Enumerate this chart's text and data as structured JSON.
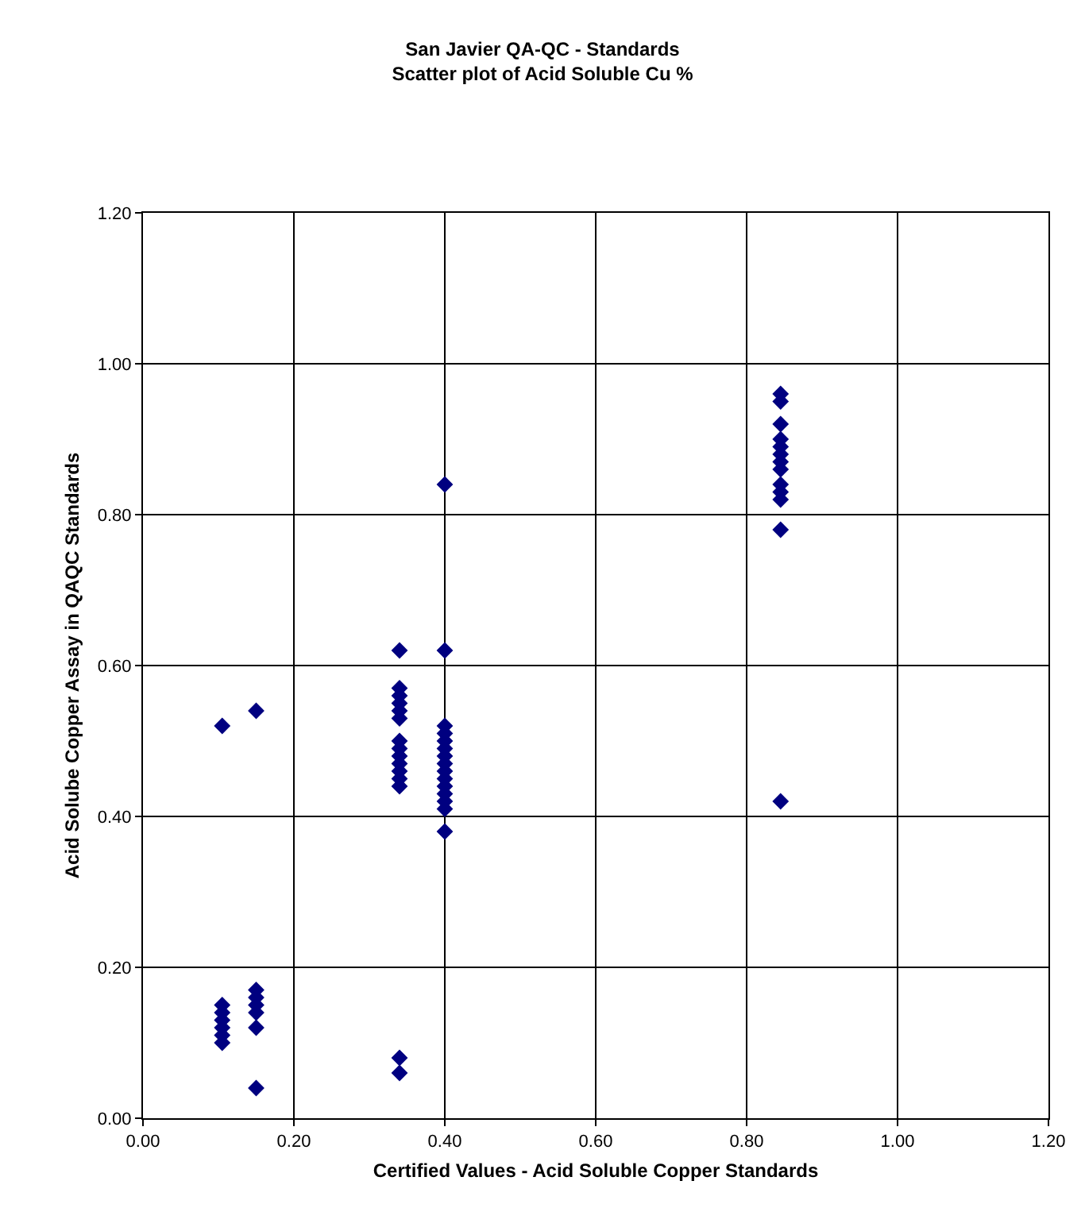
{
  "chart_data": {
    "type": "scatter",
    "title": "San Javier QA-QC - Standards",
    "subtitle": "Scatter plot of Acid Soluble Cu %",
    "xlabel": "Certified Values - Acid Soluble Copper Standards",
    "ylabel": "Acid Solube Copper Assay in QAQC Standards",
    "x": [
      0.105,
      0.105,
      0.105,
      0.105,
      0.105,
      0.105,
      0.105,
      0.15,
      0.15,
      0.15,
      0.15,
      0.15,
      0.15,
      0.15,
      0.34,
      0.34,
      0.34,
      0.34,
      0.34,
      0.34,
      0.34,
      0.34,
      0.34,
      0.34,
      0.34,
      0.34,
      0.34,
      0.34,
      0.34,
      0.4,
      0.4,
      0.4,
      0.4,
      0.4,
      0.4,
      0.4,
      0.4,
      0.4,
      0.4,
      0.4,
      0.4,
      0.4,
      0.4,
      0.4,
      0.845,
      0.845,
      0.845,
      0.845,
      0.845,
      0.845,
      0.845,
      0.845,
      0.845,
      0.845,
      0.845,
      0.845,
      0.845
    ],
    "series": [
      {
        "color": "#000080",
        "values": [
          0.1,
          0.11,
          0.12,
          0.13,
          0.14,
          0.15,
          0.52,
          0.04,
          0.12,
          0.14,
          0.15,
          0.16,
          0.17,
          0.54,
          0.06,
          0.08,
          0.44,
          0.45,
          0.46,
          0.47,
          0.48,
          0.49,
          0.5,
          0.53,
          0.54,
          0.55,
          0.56,
          0.57,
          0.62,
          0.38,
          0.41,
          0.42,
          0.43,
          0.44,
          0.45,
          0.46,
          0.47,
          0.48,
          0.49,
          0.5,
          0.51,
          0.52,
          0.62,
          0.84,
          0.42,
          0.78,
          0.82,
          0.83,
          0.84,
          0.86,
          0.87,
          0.88,
          0.89,
          0.9,
          0.92,
          0.95,
          0.96
        ]
      }
    ],
    "xlim": [
      0,
      1.2
    ],
    "ylim": [
      0,
      1.2
    ],
    "xticks": [
      {
        "value": 0,
        "label": "0.00"
      },
      {
        "value": 0.2,
        "label": "0.20"
      },
      {
        "value": 0.4,
        "label": "0.40"
      },
      {
        "value": 0.6,
        "label": "0.60"
      },
      {
        "value": 0.8,
        "label": "0.80"
      },
      {
        "value": 1,
        "label": "1.00"
      },
      {
        "value": 1.2,
        "label": "1.20"
      }
    ],
    "yticks": [
      {
        "value": 0,
        "label": "0.00"
      },
      {
        "value": 0.2,
        "label": "0.20"
      },
      {
        "value": 0.4,
        "label": "0.40"
      },
      {
        "value": 0.6,
        "label": "0.60"
      },
      {
        "value": 0.8,
        "label": "0.80"
      },
      {
        "value": 1,
        "label": "1.00"
      },
      {
        "value": 1.2,
        "label": "1.20"
      }
    ],
    "grid": true,
    "marker": "diamond"
  }
}
